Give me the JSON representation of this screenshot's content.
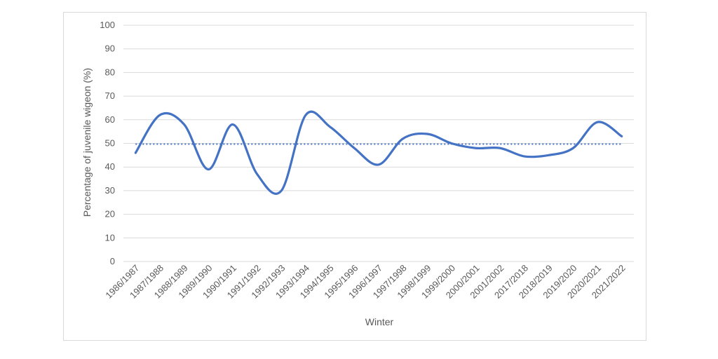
{
  "chart_data": {
    "type": "line",
    "title": "",
    "xlabel": "Winter",
    "ylabel": "Percentage of juvenile wigeon (%)",
    "ylim": [
      0,
      100
    ],
    "yticks": [
      0,
      10,
      20,
      30,
      40,
      50,
      60,
      70,
      80,
      90,
      100
    ],
    "grid": true,
    "categories": [
      "1986/1987",
      "1987/1988",
      "1988/1989",
      "1989/1990",
      "1990/1991",
      "1991/1992",
      "1992/1993",
      "1993/1994",
      "1994/1995",
      "1995/1996",
      "1996/1997",
      "1997/1998",
      "1998/1999",
      "1999/2000",
      "2000/2001",
      "2001/2002",
      "2017/2018",
      "2018/2019",
      "2019/2020",
      "2020/2021",
      "2021/2022"
    ],
    "series": [
      {
        "values": [
          46,
          62,
          58,
          39,
          58,
          37,
          30,
          62,
          57,
          48,
          41,
          52,
          54,
          50,
          48,
          48,
          44.5,
          45,
          48,
          59,
          53
        ],
        "color": "#4472c4",
        "style": "smooth"
      },
      {
        "values": [
          49.7,
          49.7,
          49.7,
          49.7,
          49.7,
          49.7,
          49.7,
          49.7,
          49.7,
          49.7,
          49.7,
          49.7,
          49.7,
          49.7,
          49.7,
          49.7,
          49.7,
          49.7,
          49.7,
          49.7,
          49.7
        ],
        "color": "#4472c4",
        "style": "dotted"
      }
    ]
  }
}
